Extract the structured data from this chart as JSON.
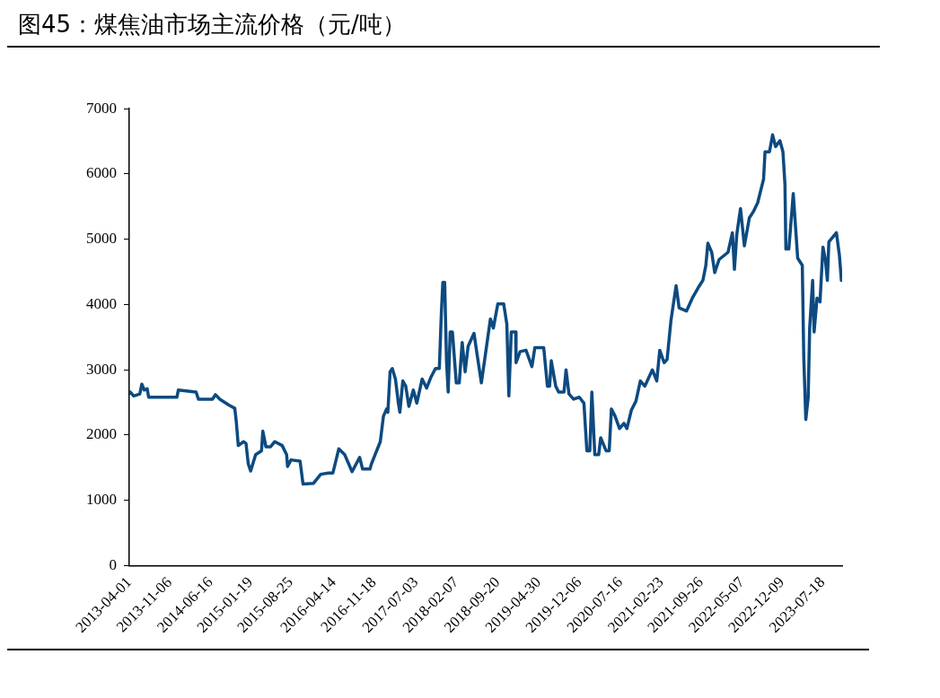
{
  "chart_data": {
    "type": "line",
    "title": "图45：煤焦油市场主流价格（元/吨）",
    "series": [
      {
        "color": "#0d4a80",
        "x": [
          "2013-04-01",
          "2013-04-06",
          "2013-04-25",
          "2013-05-28",
          "2013-06-08",
          "2013-06-21",
          "2013-07-07",
          "2013-07-15",
          "2013-12-15",
          "2013-12-23",
          "2014-03-29",
          "2014-04-11",
          "2014-06-26",
          "2014-07-12",
          "2014-08-05",
          "2014-09-23",
          "2014-10-25",
          "2014-11-02",
          "2014-11-13",
          "2014-12-12",
          "2014-12-25",
          "2015-01-06",
          "2015-01-19",
          "2015-02-15",
          "2015-03-19",
          "2015-03-26",
          "2015-04-12",
          "2015-05-06",
          "2015-05-30",
          "2015-07-09",
          "2015-08-02",
          "2015-08-07",
          "2015-08-26",
          "2015-10-14",
          "2015-10-30",
          "2015-12-25",
          "2016-02-03",
          "2016-03-16",
          "2016-04-09",
          "2016-05-11",
          "2016-06-12",
          "2016-07-22",
          "2016-09-01",
          "2016-09-17",
          "2016-10-27",
          "2016-11-04",
          "2016-12-22",
          "2017-01-08",
          "2017-01-25",
          "2017-02-01",
          "2017-02-13",
          "2017-02-25",
          "2017-03-14",
          "2017-03-30",
          "2017-04-07",
          "2017-04-23",
          "2017-05-09",
          "2017-05-26",
          "2017-06-19",
          "2017-07-08",
          "2017-08-06",
          "2017-08-30",
          "2017-09-23",
          "2017-10-17",
          "2017-11-07",
          "2017-11-18",
          "2017-11-26",
          "2017-12-06",
          "2017-12-16",
          "2017-12-25",
          "2018-01-05",
          "2018-01-17",
          "2018-02-07",
          "2018-02-23",
          "2018-03-11",
          "2018-03-27",
          "2018-04-12",
          "2018-05-14",
          "2018-05-30",
          "2018-06-23",
          "2018-07-18",
          "2018-08-11",
          "2018-08-27",
          "2018-09-20",
          "2018-10-22",
          "2018-11-08",
          "2018-11-19",
          "2018-12-02",
          "2018-12-26",
          "2018-12-28",
          "2019-01-19",
          "2019-02-20",
          "2019-03-24",
          "2019-04-09",
          "2019-05-27",
          "2019-06-16",
          "2019-06-28",
          "2019-07-07",
          "2019-07-31",
          "2019-08-16",
          "2019-09-14",
          "2019-09-25",
          "2019-10-11",
          "2019-11-05",
          "2019-12-06",
          "2019-12-31",
          "2020-01-16",
          "2020-02-01",
          "2020-02-12",
          "2020-02-28",
          "2020-03-20",
          "2020-03-31",
          "2020-04-29",
          "2020-05-16",
          "2020-05-28",
          "2020-06-17",
          "2020-07-11",
          "2020-08-04",
          "2020-08-20",
          "2020-09-13",
          "2020-10-08",
          "2020-11-01",
          "2020-11-25",
          "2021-01-05",
          "2021-01-29",
          "2021-02-14",
          "2021-03-10",
          "2021-03-26",
          "2021-04-16",
          "2021-05-14",
          "2021-05-30",
          "2021-07-09",
          "2021-08-10",
          "2021-09-11",
          "2021-10-06",
          "2021-10-22",
          "2021-11-02",
          "2021-11-23",
          "2021-12-09",
          "2022-01-02",
          "2022-02-19",
          "2022-03-15",
          "2022-03-26",
          "2022-04-08",
          "2022-04-28",
          "2022-05-19",
          "2022-06-15",
          "2022-07-06",
          "2022-07-30",
          "2022-08-31",
          "2022-09-08",
          "2022-10-02",
          "2022-10-19",
          "2022-11-04",
          "2022-11-28",
          "2022-12-14",
          "2022-12-25",
          "2022-12-30",
          "2023-01-15",
          "2023-02-08",
          "2023-03-04",
          "2023-03-29",
          "2023-04-06",
          "2023-04-17",
          "2023-04-30",
          "2023-05-08",
          "2023-05-24",
          "2023-06-01",
          "2023-06-17",
          "2023-07-03",
          "2023-07-19",
          "2023-08-01",
          "2023-08-12",
          "2023-08-20",
          "2023-09-30",
          "2023-10-16",
          "2023-10-27"
        ],
        "values": [
          2640,
          2660,
          2600,
          2630,
          2780,
          2690,
          2710,
          2580,
          2580,
          2690,
          2660,
          2550,
          2550,
          2620,
          2550,
          2460,
          2410,
          2210,
          1840,
          1900,
          1870,
          1560,
          1450,
          1700,
          1760,
          2060,
          1820,
          1820,
          1900,
          1840,
          1700,
          1520,
          1620,
          1600,
          1250,
          1260,
          1400,
          1420,
          1420,
          1790,
          1700,
          1440,
          1660,
          1480,
          1480,
          1560,
          1900,
          2290,
          2400,
          2350,
          2970,
          3020,
          2860,
          2490,
          2350,
          2830,
          2750,
          2440,
          2690,
          2490,
          2860,
          2720,
          2890,
          3020,
          3020,
          3870,
          4340,
          4340,
          3140,
          2660,
          3580,
          3580,
          2800,
          2800,
          3420,
          2970,
          3360,
          3560,
          3250,
          2800,
          3300,
          3780,
          3640,
          4010,
          4010,
          3700,
          2600,
          3580,
          3580,
          3110,
          3280,
          3300,
          3050,
          3340,
          3340,
          2750,
          2750,
          3140,
          2750,
          2660,
          2660,
          3000,
          2630,
          2550,
          2580,
          2490,
          1760,
          1760,
          2660,
          1700,
          1700,
          1960,
          1760,
          1760,
          2400,
          2290,
          2100,
          2180,
          2100,
          2380,
          2520,
          2830,
          2750,
          3000,
          2830,
          3300,
          3110,
          3160,
          3760,
          4290,
          3950,
          3900,
          4100,
          4260,
          4370,
          4600,
          4940,
          4800,
          4490,
          4690,
          4800,
          5100,
          4540,
          5080,
          5470,
          4900,
          5330,
          5420,
          5560,
          5920,
          6340,
          6340,
          6600,
          6420,
          6510,
          6340,
          5840,
          4850,
          4850,
          5700,
          4710,
          4600,
          3190,
          2240,
          2580,
          3640,
          4370,
          3580,
          4100,
          4040,
          4880,
          4690,
          4370,
          4960,
          5100,
          4760,
          4370
        ]
      }
    ],
    "xlim": [
      "2013-04-01",
      "2023-10-31"
    ],
    "xticks": [
      "2013-04-01",
      "2013-11-06",
      "2014-06-16",
      "2015-01-19",
      "2015-08-25",
      "2016-04-14",
      "2016-11-18",
      "2017-07-03",
      "2018-02-07",
      "2018-09-20",
      "2019-04-30",
      "2019-12-06",
      "2020-07-16",
      "2021-02-23",
      "2021-09-26",
      "2022-05-07",
      "2022-12-09",
      "2023-07-18"
    ],
    "ylim": [
      0,
      7000
    ],
    "yticks": [
      0,
      1000,
      2000,
      3000,
      4000,
      5000,
      6000,
      7000
    ],
    "grid": false,
    "legend": false,
    "marker": "none",
    "line_style": "solid"
  }
}
